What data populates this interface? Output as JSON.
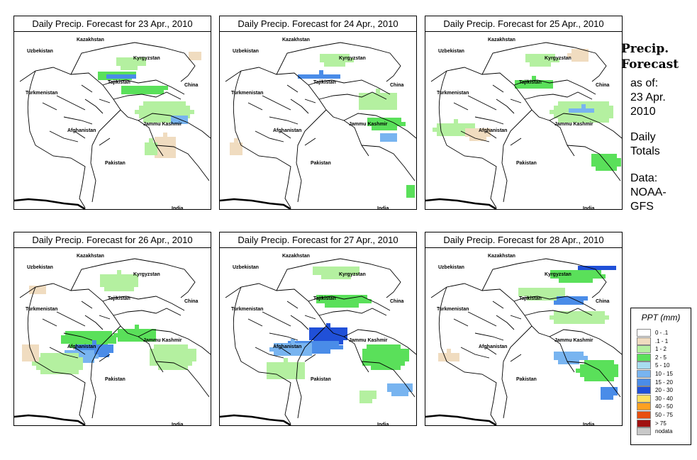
{
  "panels": [
    {
      "title": "Daily Precip. Forecast for  23 Apr., 2010"
    },
    {
      "title": "Daily Precip. Forecast for  24 Apr., 2010"
    },
    {
      "title": "Daily Precip. Forecast for  25 Apr., 2010"
    },
    {
      "title": "Daily Precip. Forecast for  26 Apr., 2010"
    },
    {
      "title": "Daily Precip. Forecast for  27 Apr., 2010"
    },
    {
      "title": "Daily Precip. Forecast for  28 Apr., 2010"
    }
  ],
  "map_labels": {
    "kazakhstan": "Kazakhstan",
    "uzbekistan": "Uzbekistan",
    "kyrgyzstan": "Kyrgyzstan",
    "tajikistan": "Tajikistan",
    "china": "China",
    "turkmenistan": "Turkmenistan",
    "afghanistan": "Afghanistan",
    "jammu_kashmir": "Jammu Kashmir",
    "pakistan": "Pakistan",
    "india": "India"
  },
  "sidebar": {
    "title_line1": "Precip.",
    "title_line2": "Forecast",
    "asof_line1": "as of:",
    "asof_line2": "23 Apr.",
    "asof_line3": "2010",
    "totals_line1": "Daily",
    "totals_line2": "Totals",
    "data_line1": "Data:",
    "data_line2": "NOAA-",
    "data_line3": "GFS"
  },
  "legend": {
    "title": "PPT (mm)",
    "items": [
      {
        "label": "0 - .1",
        "color": "#ffffff"
      },
      {
        "label": ".1 - 1",
        "color": "#f0dcc0"
      },
      {
        "label": "1 - 2",
        "color": "#b4f0a0"
      },
      {
        "label": "2 - 5",
        "color": "#5ae05a"
      },
      {
        "label": "5 - 10",
        "color": "#a8dcf0"
      },
      {
        "label": "10 - 15",
        "color": "#78b4f0"
      },
      {
        "label": "15 - 20",
        "color": "#4a8ce8"
      },
      {
        "label": "20 - 30",
        "color": "#2050d8"
      },
      {
        "label": "30 - 40",
        "color": "#ffe060"
      },
      {
        "label": "40 - 50",
        "color": "#ffa020"
      },
      {
        "label": "50 - 75",
        "color": "#e85010"
      },
      {
        "label": "> 75",
        "color": "#a01010"
      },
      {
        "label": "nodata",
        "color": "#c8c8c8"
      }
    ]
  }
}
